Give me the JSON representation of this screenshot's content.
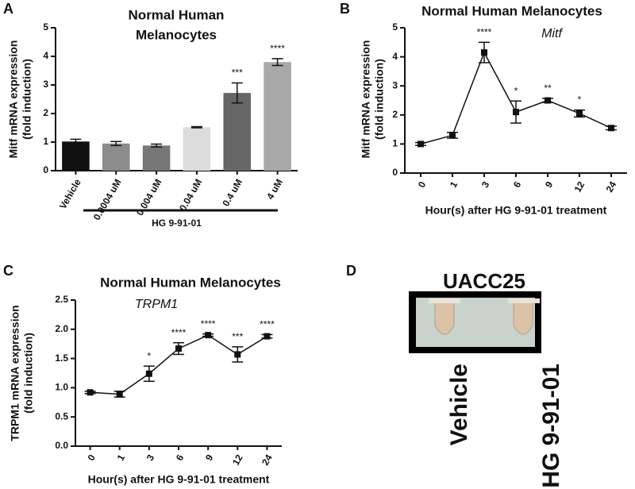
{
  "chart_data": [
    {
      "type": "bar",
      "panel_label": "A",
      "title": [
        "Normal Human",
        "Melanocytes"
      ],
      "y_label": [
        "Mitf mRNA expression",
        "(fold induction)"
      ],
      "categories": [
        "Vehicle",
        "0.0004 uM",
        "0.004 uM",
        "0.04 uM",
        "0.4 uM",
        "4 uM"
      ],
      "values": [
        1.02,
        0.95,
        0.88,
        1.52,
        2.72,
        3.8
      ],
      "errors": [
        0.08,
        0.07,
        0.05,
        0.02,
        0.35,
        0.12
      ],
      "colors": [
        "#111111",
        "#8c8c8c",
        "#777777",
        "#dcdcdc",
        "#666666",
        "#a8a8a8"
      ],
      "annotations": [
        null,
        null,
        null,
        null,
        "***",
        "****"
      ],
      "group_label": "HG 9-91-01",
      "ylim": [
        0,
        5
      ],
      "yticks": [
        0,
        1,
        2,
        3,
        4,
        5
      ],
      "grid": false
    },
    {
      "type": "line",
      "panel_label": "B",
      "title": [
        "Normal Human Melanocytes"
      ],
      "subtitle": "Mitf",
      "y_label": [
        "Mitf mRNA expression",
        "(fold induction)"
      ],
      "x_label": "Hour(s) after HG 9-91-01 treatment",
      "categories": [
        "0",
        "1",
        "3",
        "6",
        "9",
        "12",
        "24"
      ],
      "values": [
        1.0,
        1.3,
        4.15,
        2.1,
        2.5,
        2.05,
        1.55
      ],
      "errors": [
        0.05,
        0.1,
        0.35,
        0.38,
        0.07,
        0.12,
        0.06
      ],
      "color": "#111111",
      "annotations": [
        null,
        null,
        "****",
        "*",
        "**",
        "*",
        null
      ],
      "ylim": [
        0,
        5
      ],
      "yticks": [
        0,
        1,
        2,
        3,
        4,
        5
      ],
      "grid": false
    },
    {
      "type": "line",
      "panel_label": "C",
      "title": [
        "Normal Human Melanocytes"
      ],
      "subtitle": "TRPM1",
      "y_label": [
        "TRPM1 mRNA expression",
        "(fold induction)"
      ],
      "x_label": "Hour(s) after HG 9-91-01 treatment",
      "categories": [
        "0",
        "1",
        "3",
        "6",
        "9",
        "12",
        "24"
      ],
      "values": [
        0.92,
        0.89,
        1.24,
        1.67,
        1.9,
        1.57,
        1.88
      ],
      "errors": [
        0.02,
        0.05,
        0.13,
        0.1,
        0.02,
        0.13,
        0.03
      ],
      "color": "#111111",
      "annotations": [
        null,
        null,
        "*",
        "****",
        "****",
        "***",
        "****"
      ],
      "ylim": [
        0,
        2.5
      ],
      "yticks": [
        {
          "value": 0,
          "label": "0.0"
        },
        {
          "value": 0.5,
          "label": "0.5"
        },
        {
          "value": 1,
          "label": "1.0"
        },
        {
          "value": 1.5,
          "label": "1.5"
        },
        {
          "value": 2,
          "label": "2.0"
        },
        {
          "value": 2.5,
          "label": "2.5"
        }
      ],
      "grid": false
    }
  ],
  "panel_d": {
    "panel_label": "D",
    "title": "UACC25",
    "labels": [
      "Vehicle",
      "HG 9-91-01"
    ]
  }
}
